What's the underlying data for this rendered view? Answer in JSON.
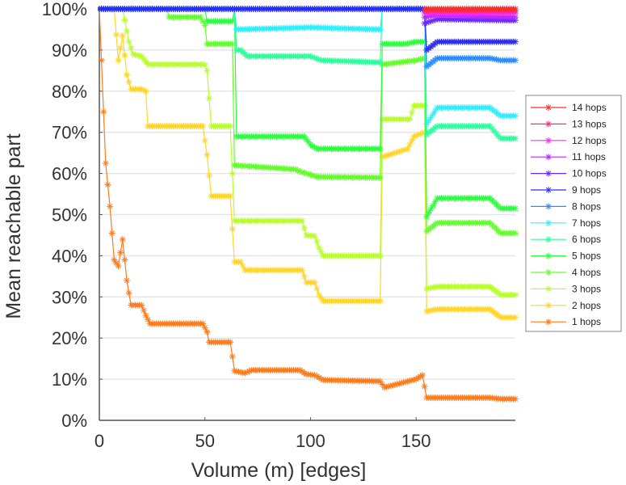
{
  "chart_data": {
    "type": "line",
    "title": "",
    "xlabel": "Volume (m) [edges]",
    "ylabel": "Mean reachable part",
    "xlim": [
      0,
      197
    ],
    "ylim": [
      0,
      100
    ],
    "x_ticks": [
      0,
      50,
      100,
      150
    ],
    "x_tick_labels": [
      "0",
      "50",
      "100",
      "150"
    ],
    "y_ticks": [
      0,
      10,
      20,
      30,
      40,
      50,
      60,
      70,
      80,
      90,
      100
    ],
    "y_tick_labels": [
      "0%",
      "10%",
      "20%",
      "30%",
      "40%",
      "50%",
      "60%",
      "70%",
      "80%",
      "90%",
      "100%"
    ],
    "grid": "horizontal",
    "legend_position": "right",
    "marker": "asterisk",
    "series": [
      {
        "name": "14 hops",
        "color": "#ff2a2a",
        "points": [
          [
            154,
            100
          ],
          [
            197,
            100
          ]
        ]
      },
      {
        "name": "13 hops",
        "color": "#ff2a80",
        "points": [
          [
            154,
            99.5
          ],
          [
            197,
            99.5
          ]
        ]
      },
      {
        "name": "12 hops",
        "color": "#ff2aff",
        "points": [
          [
            154,
            99
          ],
          [
            197,
            99
          ]
        ]
      },
      {
        "name": "11 hops",
        "color": "#b42aff",
        "points": [
          [
            154,
            98
          ],
          [
            160,
            98.5
          ],
          [
            197,
            98
          ]
        ]
      },
      {
        "name": "10 hops",
        "color": "#6a2aff",
        "points": [
          [
            154,
            96.5
          ],
          [
            160,
            97.5
          ],
          [
            197,
            97.2
          ]
        ]
      },
      {
        "name": "9 hops",
        "color": "#2a2aff",
        "points": [
          [
            0,
            100
          ],
          [
            154,
            100
          ],
          [
            155,
            90
          ],
          [
            160,
            92
          ],
          [
            197,
            92
          ]
        ]
      },
      {
        "name": "8 hops",
        "color": "#2a8cff",
        "points": [
          [
            0,
            100
          ],
          [
            64,
            100
          ],
          [
            154,
            100
          ],
          [
            155,
            86
          ],
          [
            160,
            88
          ],
          [
            185,
            88
          ],
          [
            190,
            87.5
          ],
          [
            197,
            87.5
          ]
        ]
      },
      {
        "name": "7 hops",
        "color": "#2af0ff",
        "points": [
          [
            0,
            100
          ],
          [
            64,
            100
          ],
          [
            65,
            95
          ],
          [
            100,
            95.5
          ],
          [
            133,
            95
          ],
          [
            134,
            100
          ],
          [
            154,
            100
          ],
          [
            155,
            72
          ],
          [
            160,
            76
          ],
          [
            185,
            76
          ],
          [
            190,
            74
          ],
          [
            197,
            74
          ]
        ]
      },
      {
        "name": "6 hops",
        "color": "#2aff9c",
        "points": [
          [
            0,
            100
          ],
          [
            64,
            100
          ],
          [
            65,
            90
          ],
          [
            67,
            90
          ],
          [
            70,
            88.5
          ],
          [
            100,
            88.5
          ],
          [
            105,
            87.5
          ],
          [
            133,
            87
          ],
          [
            134,
            100
          ],
          [
            154,
            100
          ],
          [
            155,
            69.5
          ],
          [
            160,
            71.5
          ],
          [
            185,
            71.5
          ],
          [
            190,
            68.5
          ],
          [
            197,
            68.5
          ]
        ]
      },
      {
        "name": "5 hops",
        "color": "#2aff3e",
        "points": [
          [
            0,
            100
          ],
          [
            50,
            100
          ],
          [
            51,
            97
          ],
          [
            63,
            97
          ],
          [
            64,
            100
          ],
          [
            65,
            69
          ],
          [
            97,
            69
          ],
          [
            100,
            67
          ],
          [
            103,
            66
          ],
          [
            133,
            66
          ],
          [
            134,
            91.5
          ],
          [
            145,
            91.5
          ],
          [
            150,
            92
          ],
          [
            154,
            92
          ],
          [
            155,
            49.5
          ],
          [
            160,
            54
          ],
          [
            185,
            54
          ],
          [
            190,
            51.5
          ],
          [
            197,
            51.5
          ]
        ]
      },
      {
        "name": "4 hops",
        "color": "#60ff2a",
        "points": [
          [
            0,
            100
          ],
          [
            32,
            100
          ],
          [
            33,
            98
          ],
          [
            48,
            98
          ],
          [
            50,
            96
          ],
          [
            51,
            91.5
          ],
          [
            63,
            91.5
          ],
          [
            64,
            62
          ],
          [
            93,
            61
          ],
          [
            95,
            60.5
          ],
          [
            103,
            59.2
          ],
          [
            133,
            59
          ],
          [
            134,
            86.5
          ],
          [
            150,
            87.5
          ],
          [
            154,
            88
          ],
          [
            155,
            46
          ],
          [
            160,
            48
          ],
          [
            185,
            48
          ],
          [
            190,
            45.5
          ],
          [
            197,
            45.5
          ]
        ]
      },
      {
        "name": "3 hops",
        "color": "#b8ff2a",
        "points": [
          [
            0,
            100
          ],
          [
            11,
            100
          ],
          [
            14,
            92
          ],
          [
            16,
            89
          ],
          [
            20,
            88.5
          ],
          [
            23,
            86.5
          ],
          [
            50,
            86.5
          ],
          [
            51,
            85
          ],
          [
            53,
            71.5
          ],
          [
            62,
            71.5
          ],
          [
            64,
            48.5
          ],
          [
            96,
            48.5
          ],
          [
            98,
            45
          ],
          [
            102,
            44.8
          ],
          [
            104,
            42
          ],
          [
            106,
            40
          ],
          [
            133,
            40
          ],
          [
            134,
            73.2
          ],
          [
            147,
            73.2
          ],
          [
            149,
            76.5
          ],
          [
            154,
            76.5
          ],
          [
            155,
            32
          ],
          [
            160,
            32.5
          ],
          [
            185,
            32.5
          ],
          [
            190,
            30.5
          ],
          [
            197,
            30.5
          ]
        ]
      },
      {
        "name": "2 hops",
        "color": "#ffd52a",
        "points": [
          [
            0,
            100
          ],
          [
            6,
            100
          ],
          [
            7,
            100
          ],
          [
            9,
            87.5
          ],
          [
            11,
            93.5
          ],
          [
            13,
            84
          ],
          [
            15,
            80.5
          ],
          [
            20,
            80.5
          ],
          [
            22,
            80
          ],
          [
            23,
            71.5
          ],
          [
            49,
            71.5
          ],
          [
            51,
            64.5
          ],
          [
            53,
            54.5
          ],
          [
            62,
            54.5
          ],
          [
            64,
            38.5
          ],
          [
            67,
            38.5
          ],
          [
            69,
            36.5
          ],
          [
            96,
            36.5
          ],
          [
            98,
            33.5
          ],
          [
            102,
            33.5
          ],
          [
            104,
            30.5
          ],
          [
            106,
            29
          ],
          [
            133,
            29
          ],
          [
            134,
            64
          ],
          [
            146,
            66
          ],
          [
            149,
            69
          ],
          [
            154,
            70
          ],
          [
            155,
            26.5
          ],
          [
            160,
            27
          ],
          [
            185,
            27
          ],
          [
            190,
            25
          ],
          [
            197,
            25
          ]
        ]
      },
      {
        "name": "1 hops",
        "color": "#ff7a1a",
        "points": [
          [
            0,
            100
          ],
          [
            3,
            62.5
          ],
          [
            5,
            52
          ],
          [
            7,
            39
          ],
          [
            9,
            37.5
          ],
          [
            11,
            44
          ],
          [
            13,
            34
          ],
          [
            15,
            28
          ],
          [
            20,
            28
          ],
          [
            22,
            25.5
          ],
          [
            24,
            23.5
          ],
          [
            49,
            23.5
          ],
          [
            51,
            21.5
          ],
          [
            52,
            19
          ],
          [
            62,
            19
          ],
          [
            64,
            12
          ],
          [
            69,
            11.5
          ],
          [
            72,
            12.2
          ],
          [
            95,
            12.2
          ],
          [
            98,
            11.2
          ],
          [
            102,
            11
          ],
          [
            106,
            9.8
          ],
          [
            133,
            9.5
          ],
          [
            135,
            8
          ],
          [
            150,
            10
          ],
          [
            153,
            11
          ],
          [
            155,
            5.5
          ],
          [
            185,
            5.5
          ],
          [
            190,
            5.2
          ],
          [
            197,
            5.2
          ]
        ]
      }
    ]
  }
}
